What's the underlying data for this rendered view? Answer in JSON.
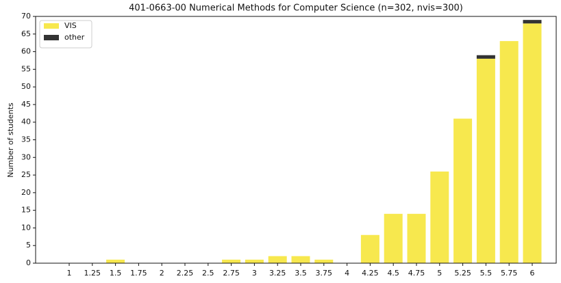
{
  "chart_data": {
    "type": "bar",
    "stacked": true,
    "title": "401-0663-00 Numerical Methods for Computer Science (n=302, nvis=300)",
    "ylabel": "Number of students",
    "categories": [
      "1",
      "1.25",
      "1.5",
      "1.75",
      "2",
      "2.25",
      "2.5",
      "2.75",
      "3",
      "3.25",
      "3.5",
      "3.75",
      "4",
      "4.25",
      "4.5",
      "4.75",
      "5",
      "5.25",
      "5.5",
      "5.75",
      "6"
    ],
    "series": [
      {
        "name": "VIS",
        "color": "#f7e84e",
        "values": [
          0,
          0,
          1,
          0,
          0,
          0,
          0,
          1,
          1,
          2,
          2,
          1,
          0,
          8,
          14,
          14,
          26,
          41,
          58,
          63,
          68
        ]
      },
      {
        "name": "other",
        "color": "#333333",
        "values": [
          0,
          0,
          0,
          0,
          0,
          0,
          0,
          0,
          0,
          0,
          0,
          0,
          0,
          0,
          0,
          0,
          0,
          0,
          1,
          0,
          1
        ]
      }
    ],
    "ylim": [
      0,
      70
    ],
    "yticks": [
      0,
      5,
      10,
      15,
      20,
      25,
      30,
      35,
      40,
      45,
      50,
      55,
      60,
      65,
      70
    ],
    "legend": "upper left",
    "grid": false
  }
}
